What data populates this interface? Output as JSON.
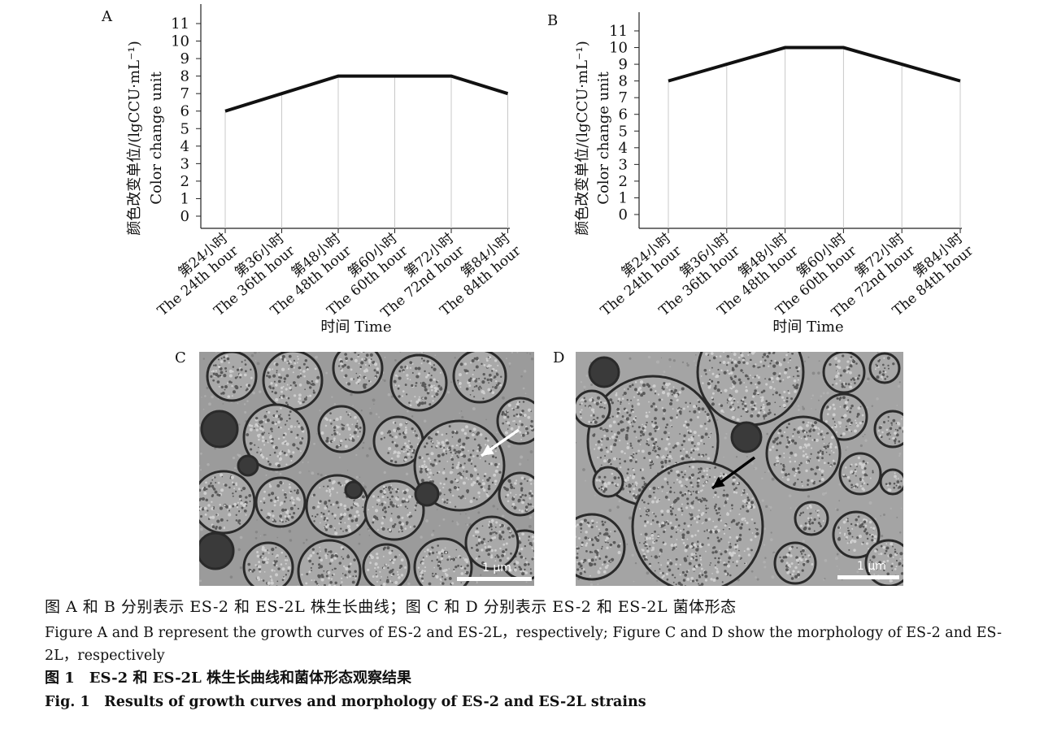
{
  "panels": {
    "a": "A",
    "b": "B",
    "c": "C",
    "d": "D"
  },
  "chart_data": [
    {
      "type": "line",
      "panel": "A",
      "ylabel_zh": "颜色改变单位/(lgCCU·mL⁻¹)",
      "ylabel_en": "Color change unit",
      "xlabel": "时间 Time",
      "yticks": [
        "0",
        "1",
        "2",
        "3",
        "4",
        "5",
        "6",
        "7",
        "8",
        "9",
        "10",
        "11"
      ],
      "ylim": [
        0,
        11
      ],
      "categories": [
        [
          "第24小时",
          "The 24th hour"
        ],
        [
          "第36小时",
          "The 36th hour"
        ],
        [
          "第48小时",
          "The 48th hour"
        ],
        [
          "第60小时",
          "The 60th hour"
        ],
        [
          "第72小时",
          "The 72nd hour"
        ],
        [
          "第84小时",
          "The 84th hour"
        ]
      ],
      "values": [
        6,
        7,
        8,
        8,
        8,
        7
      ],
      "grid": "vertical"
    },
    {
      "type": "line",
      "panel": "B",
      "ylabel_zh": "颜色改变单位/(lgCCU·mL⁻¹)",
      "ylabel_en": "Color change unit",
      "xlabel": "时间 Time",
      "yticks": [
        "0",
        "1",
        "2",
        "3",
        "4",
        "5",
        "6",
        "7",
        "8",
        "9",
        "10",
        "11"
      ],
      "ylim": [
        0,
        11
      ],
      "categories": [
        [
          "第24小时",
          "The 24th hour"
        ],
        [
          "第36小时",
          "The 36th hour"
        ],
        [
          "第48小时",
          "The 48th hour"
        ],
        [
          "第60小时",
          "The 60th hour"
        ],
        [
          "第72小时",
          "The 72nd hour"
        ],
        [
          "第84小时",
          "The 84th hour"
        ]
      ],
      "values": [
        8,
        9,
        10,
        10,
        9,
        8
      ],
      "grid": "vertical"
    }
  ],
  "micrographs": {
    "c": {
      "scale_label": "1 μm",
      "arrow_color": "#ffffff"
    },
    "d": {
      "scale_label": "1 μm",
      "arrow_color": "#000000"
    }
  },
  "caption": {
    "zh": "图 A 和 B 分别表示 ES-2 和 ES-2L 株生长曲线；图 C 和 D 分别表示 ES-2 和 ES-2L 菌体形态",
    "en": "Figure A and B represent the growth curves of ES-2 and ES-2L，respectively; Figure C and D show the morphology of ES-2 and ES-2L，respectively",
    "fig_zh": "图 1　ES-2 和 ES-2L 株生长曲线和菌体形态观察结果",
    "fig_en": "Fig. 1　Results of growth curves and morphology of ES-2 and ES-2L strains"
  }
}
